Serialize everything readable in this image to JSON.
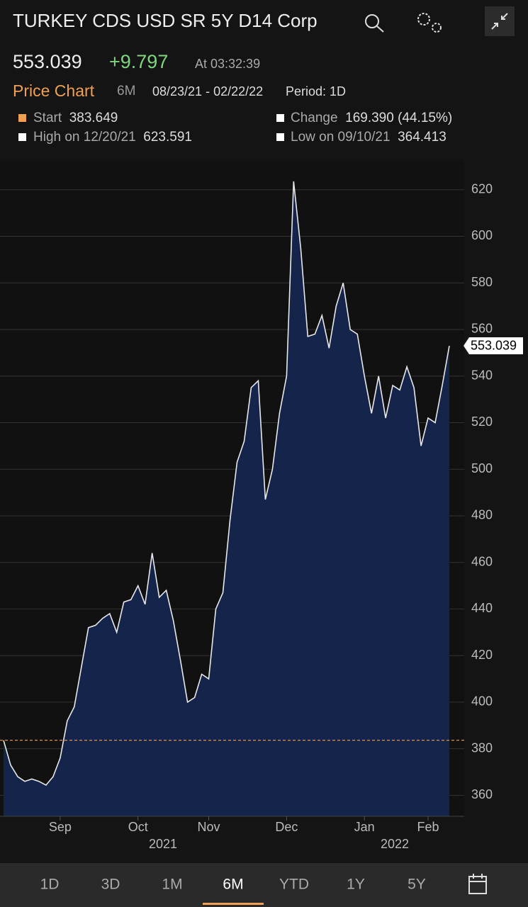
{
  "header": {
    "title": "TURKEY CDS USD SR 5Y D14 Corp",
    "price": "553.039",
    "change": "+9.797",
    "time": "At 03:32:39"
  },
  "subheader": {
    "title": "Price Chart",
    "range": "6M",
    "dates": "08/23/21 - 02/22/22",
    "period": "Period: 1D"
  },
  "stats": {
    "start": {
      "label": "Start",
      "value": 383.649
    },
    "change": {
      "label": "Change",
      "value": "169.390 (44.15%)"
    },
    "high": {
      "label": "High on 12/20/21",
      "value": "623.591"
    },
    "low": {
      "label": "Low on 09/10/21",
      "value": "364.413"
    }
  },
  "chart_data": {
    "type": "area",
    "color": "#15244a",
    "line_color": "#e8e8e8",
    "grid": true,
    "categories": [
      null,
      null,
      null,
      null,
      null,
      null,
      null,
      null,
      "Sep",
      null,
      null,
      null,
      null,
      null,
      null,
      null,
      null,
      null,
      null,
      "Oct",
      null,
      null,
      null,
      null,
      null,
      null,
      null,
      null,
      null,
      "Nov",
      null,
      null,
      null,
      null,
      null,
      null,
      null,
      null,
      null,
      null,
      "Dec",
      null,
      null,
      null,
      null,
      null,
      null,
      null,
      null,
      null,
      null,
      "Jan",
      null,
      null,
      null,
      null,
      null,
      null,
      null,
      null,
      "Feb",
      null,
      null,
      null
    ],
    "values": [
      383.6,
      373,
      368,
      366,
      367,
      366,
      364.4,
      368,
      376,
      392,
      398,
      415,
      432,
      433,
      436,
      438,
      430,
      443,
      444,
      450,
      442,
      464,
      445,
      448,
      435,
      418,
      400,
      402,
      412,
      410,
      440,
      447,
      478,
      503,
      512,
      535,
      538,
      487,
      500,
      524,
      540,
      623.6,
      595,
      557,
      558,
      566,
      552,
      570,
      580,
      560,
      558,
      540,
      524,
      540,
      522,
      536,
      534,
      544,
      535,
      510,
      522,
      520,
      536,
      553.0
    ],
    "year_labels": [
      "2021",
      "2022"
    ],
    "ylim": [
      351,
      633
    ],
    "yticks": [
      360,
      380,
      400,
      420,
      440,
      460,
      480,
      500,
      520,
      540,
      560,
      580,
      600,
      620
    ]
  },
  "tabs": [
    "1D",
    "3D",
    "1M",
    "6M",
    "YTD",
    "1Y",
    "5Y"
  ]
}
